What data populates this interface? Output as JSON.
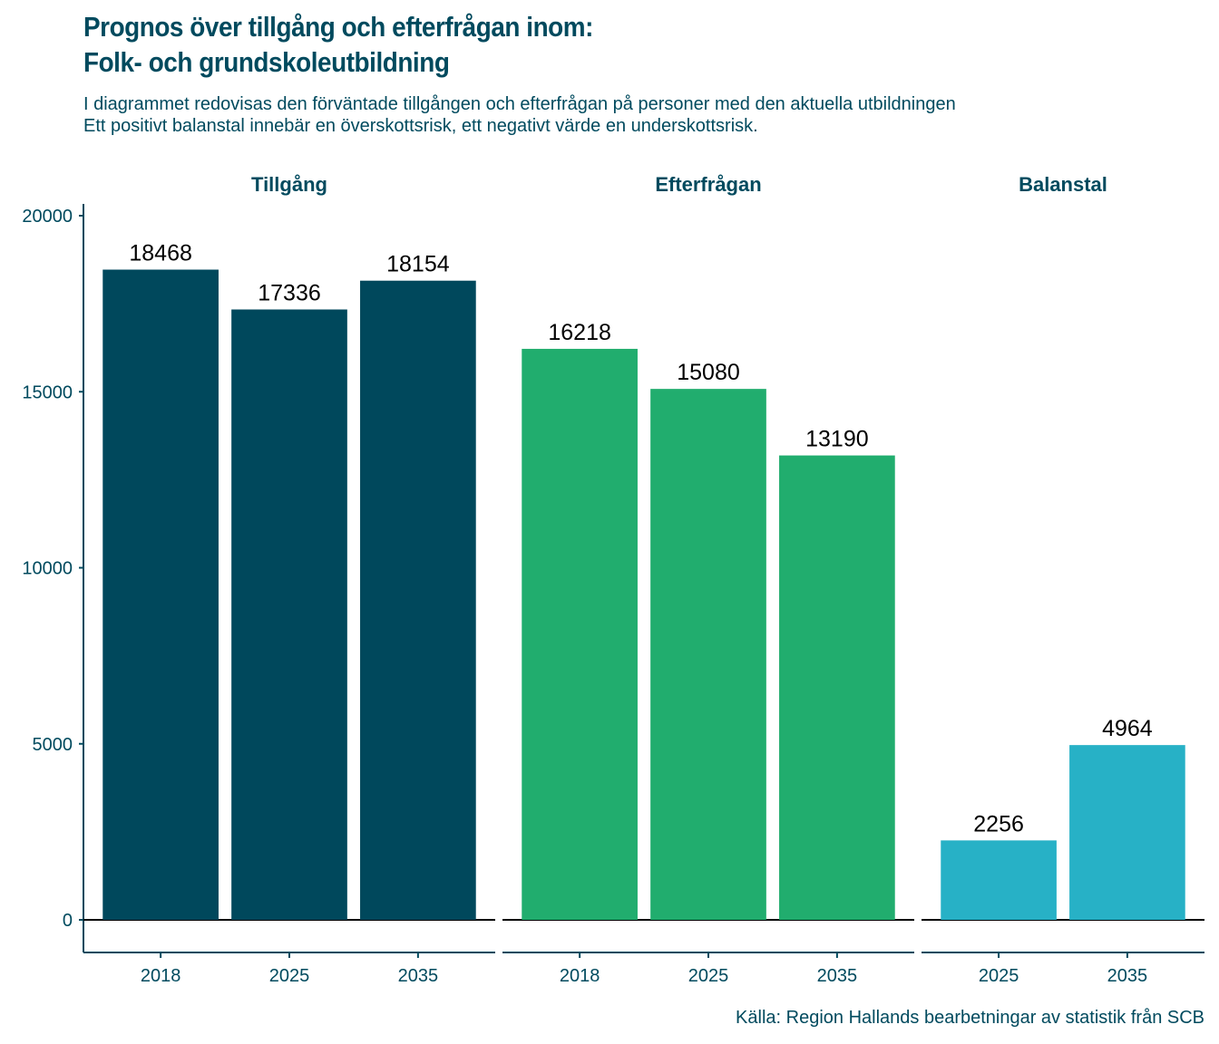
{
  "chart_data": {
    "type": "bar",
    "title_lines": [
      "Prognos över tillgång och efterfrågan inom:",
      "Folk- och grundskoleutbildning"
    ],
    "subtitle_lines": [
      "I diagrammet redovisas den förväntade tillgången och efterfrågan på personer med den aktuella utbildningen",
      "Ett positivt balanstal innebär en överskottsrisk, ett negativt värde en underskottsrisk."
    ],
    "caption": "Källa: Region Hallands bearbetningar av statistik från SCB",
    "xlabel": "",
    "ylabel": "",
    "ylim": [
      -900,
      20300
    ],
    "y_ticks": [
      0,
      5000,
      10000,
      15000,
      20000
    ],
    "grid": false,
    "legend": "none",
    "facets": [
      {
        "name": "Tillgång",
        "color": "#00485c",
        "categories": [
          "2018",
          "2025",
          "2035"
        ],
        "values": [
          18468,
          17336,
          18154
        ]
      },
      {
        "name": "Efterfrågan",
        "color": "#21ad6e",
        "categories": [
          "2018",
          "2025",
          "2035"
        ],
        "values": [
          16218,
          15080,
          13190
        ]
      },
      {
        "name": "Balanstal",
        "color": "#27b1c6",
        "categories": [
          "2025",
          "2035"
        ],
        "values": [
          2256,
          4964
        ]
      }
    ]
  }
}
